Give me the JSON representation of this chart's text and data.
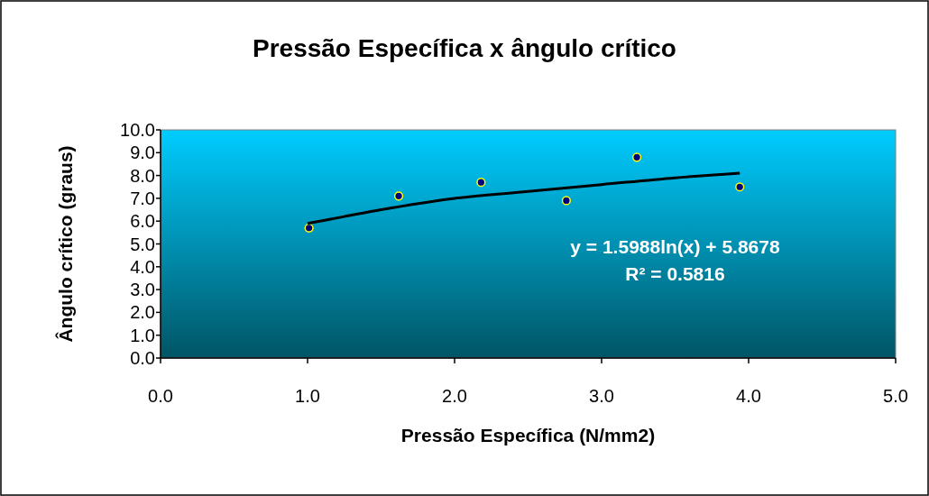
{
  "chart_data": {
    "type": "scatter",
    "title": "Pressão Específica x ângulo crítico",
    "xlabel": "Pressão Específica (N/mm2)",
    "ylabel": "Ângulo crítico (graus)",
    "xlim": [
      0,
      5
    ],
    "xticks": [
      {
        "value": 0,
        "label": "0.0"
      },
      {
        "value": 1,
        "label": "1.0"
      },
      {
        "value": 2,
        "label": "2.0"
      },
      {
        "value": 3,
        "label": "3.0"
      },
      {
        "value": 4,
        "label": "4.0"
      },
      {
        "value": 5,
        "label": "5.0"
      }
    ],
    "ylim": [
      0,
      10
    ],
    "yticks": [
      {
        "value": 0,
        "label": "0.0"
      },
      {
        "value": 1,
        "label": "1.0"
      },
      {
        "value": 2,
        "label": "2.0"
      },
      {
        "value": 3,
        "label": "3.0"
      },
      {
        "value": 4,
        "label": "4.0"
      },
      {
        "value": 5,
        "label": "5.0"
      },
      {
        "value": 6,
        "label": "6.0"
      },
      {
        "value": 7,
        "label": "7.0"
      },
      {
        "value": 8,
        "label": "8.0"
      },
      {
        "value": 9,
        "label": "9.0"
      },
      {
        "value": 10,
        "label": "10.0"
      }
    ],
    "grid": false,
    "series": [
      {
        "marker": "circle",
        "color": "#000080",
        "x": [
          1.01,
          1.62,
          2.18,
          2.76,
          3.24,
          3.94
        ],
        "values": [
          5.7,
          7.1,
          7.7,
          6.9,
          8.8,
          7.5
        ]
      },
      {
        "type": "line",
        "color": "#000000",
        "x": [
          1,
          1.25,
          1.5,
          2,
          2.5,
          3,
          3.5,
          3.94
        ],
        "values": [
          5.9,
          6.2,
          6.5,
          7.0,
          7.3,
          7.6,
          7.9,
          8.1
        ]
      }
    ],
    "annotations": [
      "y = 1.5988ln(x)  + 5.8678",
      "R² = 0.5816"
    ]
  }
}
